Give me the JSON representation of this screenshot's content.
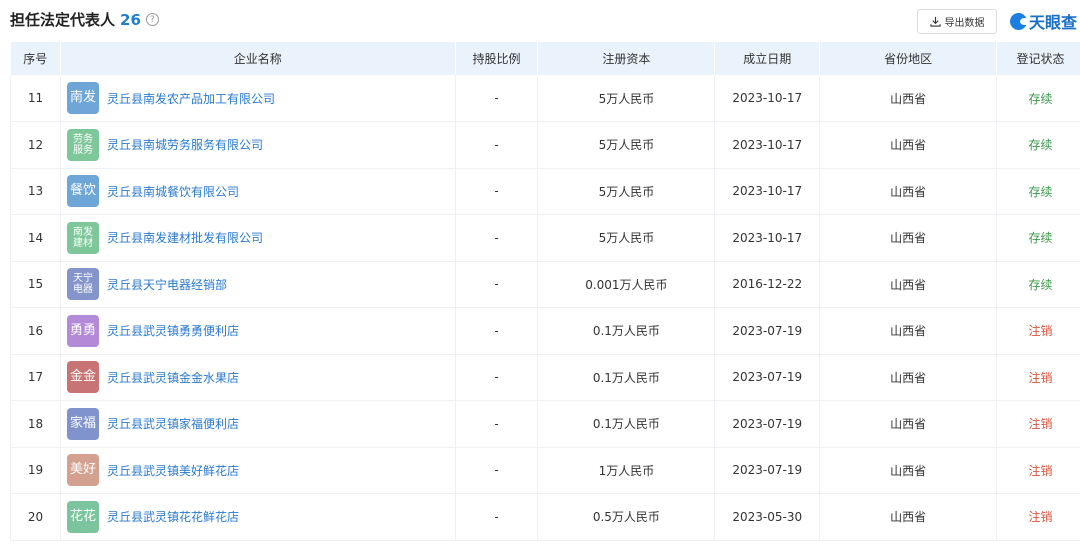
{
  "header": {
    "title": "担任法定代表人",
    "count": "26",
    "help_icon": "?",
    "export_label": "导出数据",
    "brand": "天眼查"
  },
  "columns": [
    "序号",
    "企业名称",
    "持股比例",
    "注册资本",
    "成立日期",
    "省份地区",
    "登记状态"
  ],
  "rows": [
    {
      "no": "11",
      "logo": "南发",
      "logo_color": "#6fa6d8",
      "name": "灵丘县南发农产品加工有限公司",
      "share": "-",
      "capital": "5万人民币",
      "date": "2023-10-17",
      "region": "山西省",
      "status": "存续",
      "status_type": "ok"
    },
    {
      "no": "12",
      "logo": "劳务服务",
      "logo_color": "#7dc79b",
      "name": "灵丘县南城劳务服务有限公司",
      "share": "-",
      "capital": "5万人民币",
      "date": "2023-10-17",
      "region": "山西省",
      "status": "存续",
      "status_type": "ok"
    },
    {
      "no": "13",
      "logo": "餐饮",
      "logo_color": "#6fa6d8",
      "name": "灵丘县南城餐饮有限公司",
      "share": "-",
      "capital": "5万人民币",
      "date": "2023-10-17",
      "region": "山西省",
      "status": "存续",
      "status_type": "ok"
    },
    {
      "no": "14",
      "logo": "南发建材",
      "logo_color": "#7dc79b",
      "name": "灵丘县南发建材批发有限公司",
      "share": "-",
      "capital": "5万人民币",
      "date": "2023-10-17",
      "region": "山西省",
      "status": "存续",
      "status_type": "ok"
    },
    {
      "no": "15",
      "logo": "天宁电器",
      "logo_color": "#8495cc",
      "name": "灵丘县天宁电器经销部",
      "share": "-",
      "capital": "0.001万人民币",
      "date": "2016-12-22",
      "region": "山西省",
      "status": "存续",
      "status_type": "ok"
    },
    {
      "no": "16",
      "logo": "勇勇",
      "logo_color": "#b38ad8",
      "name": "灵丘县武灵镇勇勇便利店",
      "share": "-",
      "capital": "0.1万人民币",
      "date": "2023-07-19",
      "region": "山西省",
      "status": "注销",
      "status_type": "bad"
    },
    {
      "no": "17",
      "logo": "金金",
      "logo_color": "#c97474",
      "name": "灵丘县武灵镇金金水果店",
      "share": "-",
      "capital": "0.1万人民币",
      "date": "2023-07-19",
      "region": "山西省",
      "status": "注销",
      "status_type": "bad"
    },
    {
      "no": "18",
      "logo": "家福",
      "logo_color": "#8093cc",
      "name": "灵丘县武灵镇家福便利店",
      "share": "-",
      "capital": "0.1万人民币",
      "date": "2023-07-19",
      "region": "山西省",
      "status": "注销",
      "status_type": "bad"
    },
    {
      "no": "19",
      "logo": "美好",
      "logo_color": "#d4a190",
      "name": "灵丘县武灵镇美好鲜花店",
      "share": "-",
      "capital": "1万人民币",
      "date": "2023-07-19",
      "region": "山西省",
      "status": "注销",
      "status_type": "bad"
    },
    {
      "no": "20",
      "logo": "花花",
      "logo_color": "#7cc49e",
      "name": "灵丘县武灵镇花花鲜花店",
      "share": "-",
      "capital": "0.5万人民币",
      "date": "2023-05-30",
      "region": "山西省",
      "status": "注销",
      "status_type": "bad"
    }
  ]
}
